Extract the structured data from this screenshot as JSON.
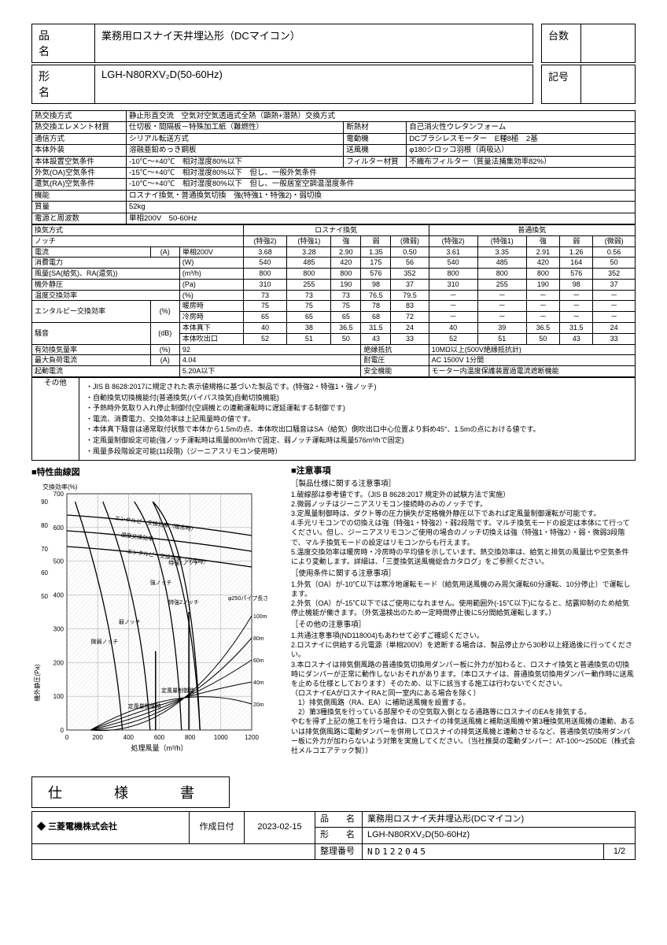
{
  "header": {
    "name_label": "品　名",
    "name_value": "業務用ロスナイ天井埋込形（DCマイコン）",
    "model_label": "形　名",
    "model_value": "LGH-N80RXV₂D(50-60Hz)",
    "qty_label": "台数",
    "mark_label": "記号"
  },
  "spec": {
    "exchange_method_l": "熱交換方式",
    "exchange_method_v": "静止形直交流　空気対空気透過式全熱（顕熱+潜熱）交換方式",
    "elem_material_l": "熱交換エレメント材質",
    "elem_material_v": "仕切板・間隔板－特殊加工紙（難燃性）",
    "insulation_l": "断熱材",
    "insulation_v": "自己消火性ウレタンフォーム",
    "comm_l": "通信方式",
    "comm_v": "シリアル転送方式",
    "motor_l": "電動機",
    "motor_v": "DCブラシレスモーター　E種8極　2基",
    "body_ext_l": "本体外装",
    "body_ext_v": "溶融亜鉛めっき鋼板",
    "fan_l": "送風機",
    "fan_v": "φ180シロッコ羽根（両吸込）",
    "install_air_l": "本体設置空気条件",
    "install_air_v": "-10℃～+40℃　相対湿度80%以下",
    "filter_l": "フィルター材質",
    "filter_v": "不織布フィルター（質量法捕集効率82%）",
    "oa_l": "外気(OA)空気条件",
    "oa_v": "-15℃～+40℃　相対湿度80%以下　但し、一般外気条件",
    "ra_l": "還気(RA)空気条件",
    "ra_v": "-10℃～+40℃　相対湿度80%以下　但し、一般居室空調温湿度条件",
    "func_l": "機能",
    "func_v": "ロスナイ換気・普通換気切換　強(特強1・特強2)・弱切換",
    "mass_l": "質量",
    "mass_v": "52kg",
    "power_l": "電源と周波数",
    "power_v": "単相200V　50-60Hz"
  },
  "perf": {
    "vent_mode_l": "換気方式",
    "lossnay": "ロスナイ換気",
    "normal": "普通換気",
    "notch_l": "ノッチ",
    "cols": [
      "(特強2)",
      "(特強1)",
      "強",
      "弱",
      "(微弱)",
      "(特強2)",
      "(特強1)",
      "強",
      "弱",
      "(微弱)"
    ],
    "rows": [
      {
        "l": "電流",
        "sub": "(A)",
        "extra": "単相200V",
        "v": [
          "3.68",
          "3.28",
          "2.90",
          "1.35",
          "0.50",
          "3.61",
          "3.35",
          "2.91",
          "1.26",
          "0.56"
        ]
      },
      {
        "l": "消費電力",
        "sub": "(W)",
        "extra": "",
        "v": [
          "540",
          "485",
          "420",
          "175",
          "56",
          "540",
          "485",
          "420",
          "164",
          "50"
        ]
      },
      {
        "l": "風量(SA(給気)、RA(還気))",
        "sub": "(m³/h)",
        "extra": "",
        "v": [
          "800",
          "800",
          "800",
          "576",
          "352",
          "800",
          "800",
          "800",
          "576",
          "352"
        ]
      },
      {
        "l": "機外静圧",
        "sub": "(Pa)",
        "extra": "",
        "v": [
          "310",
          "255",
          "190",
          "98",
          "37",
          "310",
          "255",
          "190",
          "98",
          "37"
        ]
      },
      {
        "l": "温度交換効率",
        "sub": "(%)",
        "extra": "",
        "v": [
          "73",
          "73",
          "73",
          "76.5",
          "79.5",
          "－",
          "－",
          "－",
          "－",
          "－"
        ]
      }
    ],
    "enthalpy_l": "エンタルピー交換効率",
    "enthalpy_u": "(%)",
    "enthalpy_h_l": "暖房時",
    "enthalpy_h": [
      "75",
      "75",
      "75",
      "78",
      "83",
      "－",
      "－",
      "－",
      "－",
      "－"
    ],
    "enthalpy_c_l": "冷房時",
    "enthalpy_c": [
      "65",
      "65",
      "65",
      "68",
      "72",
      "－",
      "－",
      "－",
      "－",
      "－"
    ],
    "noise_l": "騒音",
    "noise_u": "(dB)",
    "noise_b_l": "本体真下",
    "noise_b": [
      "40",
      "38",
      "36.5",
      "31.5",
      "24",
      "40",
      "39",
      "36.5",
      "31.5",
      "24"
    ],
    "noise_o_l": "本体吹出口",
    "noise_o": [
      "52",
      "51",
      "50",
      "43",
      "33",
      "52",
      "51",
      "50",
      "43",
      "33"
    ],
    "eff_vent_l": "有効換気量率",
    "eff_vent_u": "(%)",
    "eff_vent_v": "92",
    "ins_res_l": "絶縁抵抗",
    "ins_res_v": "10MΩ以上(500V絶縁抵抗計)",
    "max_cur_l": "最大負荷電流",
    "max_cur_u": "(A)",
    "max_cur_v": "4.04",
    "withstand_l": "耐電圧",
    "withstand_v": "AC 1500V 1分間",
    "start_cur_l": "起動電流",
    "start_cur_v": "5.20A以下",
    "safety_l": "安全機能",
    "safety_v": "モーター内温度保護装置過電流遮断機能"
  },
  "other": {
    "label": "その他",
    "items": [
      "・JIS B 8628:2017に規定された表示値規格に基づいた製品です。(特強2・特強1・強ノッチ)",
      "・自動換気切換機能付(普通換気(バイパス換気)自動切換機能)",
      "・予熱時外気取り入れ停止制御付(空調機との連動運転時に遅延運転する制御です)",
      "・電流、消費電力、交換効率は上記風量時の値です。",
      "・本体真下騒音は通常取付状態で本体から1.5mの点、本体吹出口騒音はSA（給気）側吹出口中心位置より斜め45°、1.5mの点における値です。",
      "・定風量制御設定可能(強ノッチ運転時は風量800m³/hで固定、弱ノッチ運転時は風量576m³/hで固定)",
      "・風量多段階設定可能(11段階)（ジーニアスリモコン使用時）"
    ]
  },
  "chart": {
    "title": "■特性曲線図",
    "y1_label": "交換効率(%)",
    "y2_label": "機外静圧(Pa)",
    "x_label": "処理風量（m³/h）",
    "y1_ticks": [
      "90",
      "80",
      "70",
      "60",
      "50"
    ],
    "y2_ticks": [
      "700",
      "600",
      "500",
      "400",
      "300",
      "200",
      "100",
      "0"
    ],
    "x_ticks": [
      "0",
      "200",
      "400",
      "600",
      "800",
      "1000",
      "1200"
    ],
    "curve_labels": [
      "エンタルピー交換効率（暖房時）",
      "温度交換効率",
      "エンタルピー交換効率（冷房時）",
      "特強1ノッチ",
      "強ノッチ",
      "特強2ノッチ",
      "弱ノッチ",
      "微弱ノッチ",
      "定風量制御時",
      "定風量制御時"
    ],
    "pipe_label": "φ250パイプ長さ",
    "pipe_lengths": [
      "100m",
      "80m",
      "60m",
      "40m",
      "20m"
    ]
  },
  "notice": {
    "title": "■注意事項",
    "groups": [
      {
        "head": "［製品仕様に関する注意事項］",
        "items": [
          "1.破線部は参考値です。（JIS B 8628:2017 規定外の試験方法で実施）",
          "2.微弱ノッチはジーニアスリモコン接続時のみのノッチです。",
          "3.定風量制御時は、ダクト等の圧力損失が定格機外静圧以下であれば定風量制御運転が可能です。",
          "4.手元リモコンでの切換えは強（特強1・特強2）・弱2段階です。マルチ換気モードの設定は本体にて行ってください。但し、ジーニアスリモコンご使用の場合のノッチ切換えは強（特強1・特強2）・弱・微弱3段階で、マルチ換気モードの設定はリモコンからも行えます。",
          "5.温度交換効率は暖房時・冷房時の平均値を示しています。熱交換効率は、給気と排気の風量比や空気条件により変動します。詳細は、「三菱換気送風機総合カタログ」をご参照ください。"
        ]
      },
      {
        "head": "［使用条件に関する注意事項］",
        "items": [
          "1.外気（OA）が-10℃以下は寒冷地運転モード（給気用送風機のみ周欠運転60分運転、10分停止）で運転します。",
          "2.外気（OA）が-15℃以下ではご使用になれません。使用範囲外(-15℃以下)になると、結露抑制のため給気停止機能が働きます。（外気温検出のため一定時間停止後に5分間給気運転します。）"
        ]
      },
      {
        "head": "［その他の注意事項］",
        "items": [
          "1.共通注意事項(ND118004)もあわせて必ずご確認ください。",
          "2.ロスナイに供給する元電源（単相200V）を遮断する場合は、製品停止から30秒以上経過後に行ってください。",
          "3.本ロスナイは排気側風路の普通換気切換用ダンパー板に外力が加わると、ロスナイ換気と普通換気の切換時にダンパーが正常に動作しないおそれがあります。（本ロスナイは、普通換気切換用ダンパー動作時に送風を止める仕様としております）そのため、以下に該当する施工は行わないでください。",
          "（ロスナイEAがロスナイRAと同一室内にある場合を除く）",
          "　1）排気側風路（RA、EA）に補助送風機を設置する。",
          "　2）第3種換気を行っている部屋やその空気取入側となる通路等にロスナイのEAを排気する。",
          "やむを得ず上記の施工を行う場合は、ロスナイの排気送風機と補助送風機や第3種換気用送風機の連動、あるいは排気側風路に電動ダンパーを併用してロスナイの排気送風機と連動させるなど、普通換気切換用ダンパー板に外力が加わらないよう対策を実施してください。（当社推奨の電動ダンパー：AT-100～250DE（株式会社メルコエアテック製））"
        ]
      }
    ]
  },
  "footer": {
    "spec_label": "仕　様　書",
    "logo": "三菱電機株式会社",
    "date_l": "作成日付",
    "date_v": "2023-02-15",
    "name_l": "品　　名",
    "name_v": "業務用ロスナイ天井埋込形(DCマイコン)",
    "model_l": "形　　名",
    "model_v": "LGH-N80RXV₂D(50-60Hz)",
    "docno_l": "整理番号",
    "docno_v": "ND122045",
    "page": "1/2"
  }
}
